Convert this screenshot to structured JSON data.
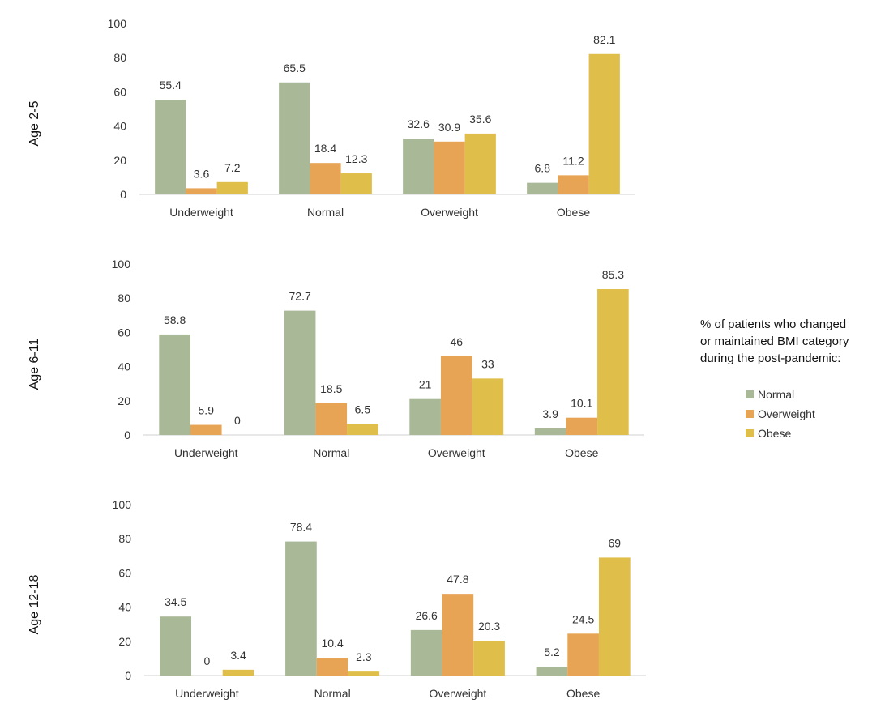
{
  "legend": {
    "title_lines": [
      "% of patients who changed",
      "or maintained BMI category",
      "during the post-pandemic:"
    ],
    "items": [
      {
        "label": "Normal",
        "color": "#a9b896"
      },
      {
        "label": "Overweight",
        "color": "#e8a455"
      },
      {
        "label": "Obese",
        "color": "#e0be4a"
      }
    ]
  },
  "chart_data": [
    {
      "type": "bar",
      "ylabel": "Age 2-5",
      "categories": [
        "Underweight",
        "Normal",
        "Overweight",
        "Obese"
      ],
      "ylim": [
        0,
        100
      ],
      "yticks": [
        0,
        20,
        40,
        60,
        80,
        100
      ],
      "series": [
        {
          "name": "Normal",
          "color": "#a9b896",
          "values": [
            55.4,
            65.5,
            32.6,
            6.8
          ]
        },
        {
          "name": "Overweight",
          "color": "#e8a455",
          "values": [
            3.6,
            18.4,
            30.9,
            11.2
          ]
        },
        {
          "name": "Obese",
          "color": "#e0be4a",
          "values": [
            7.2,
            12.3,
            35.6,
            82.1
          ]
        }
      ]
    },
    {
      "type": "bar",
      "ylabel": "Age 6-11",
      "categories": [
        "Underweight",
        "Normal",
        "Overweight",
        "Obese"
      ],
      "ylim": [
        0,
        100
      ],
      "yticks": [
        0,
        20,
        40,
        60,
        80,
        100
      ],
      "series": [
        {
          "name": "Normal",
          "color": "#a9b896",
          "values": [
            58.8,
            72.7,
            21,
            3.9
          ]
        },
        {
          "name": "Overweight",
          "color": "#e8a455",
          "values": [
            5.9,
            18.5,
            46,
            10.1
          ]
        },
        {
          "name": "Obese",
          "color": "#e0be4a",
          "values": [
            0,
            6.5,
            33,
            85.3
          ]
        }
      ]
    },
    {
      "type": "bar",
      "ylabel": "Age 12-18",
      "categories": [
        "Underweight",
        "Normal",
        "Overweight",
        "Obese"
      ],
      "ylim": [
        0,
        100
      ],
      "yticks": [
        0,
        20,
        40,
        60,
        80,
        100
      ],
      "series": [
        {
          "name": "Normal",
          "color": "#a9b896",
          "values": [
            34.5,
            78.4,
            26.6,
            5.2
          ]
        },
        {
          "name": "Overweight",
          "color": "#e8a455",
          "values": [
            0,
            10.4,
            47.8,
            24.5
          ]
        },
        {
          "name": "Obese",
          "color": "#e0be4a",
          "values": [
            3.4,
            2.3,
            20.3,
            69
          ]
        }
      ]
    }
  ]
}
